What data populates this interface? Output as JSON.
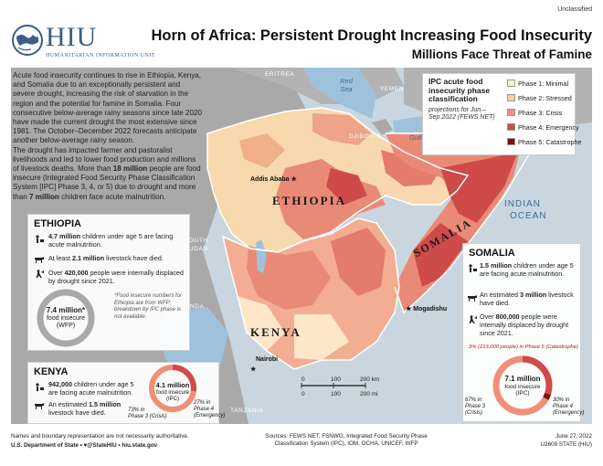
{
  "header": {
    "org": "HIU",
    "org_full": "Humanitarian Information Unit",
    "classification": "Unclassified",
    "title": "Horn of Africa: Persistent Drought Increasing Food Insecurity",
    "subtitle": "Millions Face Threat of Famine"
  },
  "intro": {
    "p1": "Acute food insecurity continues to rise in Ethiopia, Kenya, and Somalia due to an exceptionally persistent and severe drought, increasing the risk of starvation in the region and the potential for famine in Somalia. Four consecutive below-average rainy seasons since late 2020 have made the current drought the most extensive since 1981. The October–December 2022 forecasts anticipate another below-average rainy season.",
    "p2_a": "The drought has impacted farmer and pastoralist livelihoods and led to lower food production and millions of livestock deaths. More than ",
    "p2_b": "18 million",
    "p2_c": " people are food insecure (Integrated Food Security Phase Classification System [IPC] Phase 3, 4, or 5) due to drought and more than ",
    "p2_d": "7 million",
    "p2_e": " children face acute malnutrition."
  },
  "legend": {
    "title": "IPC acute food insecurity phase classification",
    "sub": "projections for Jun.–Sep.2022 (FEWS NET)",
    "phases": [
      {
        "label": "Phase 1: Minimal",
        "color": "#fdf1d3"
      },
      {
        "label": "Phase 2: Stressed",
        "color": "#f8cfa0"
      },
      {
        "label": "Phase 3: Crisis",
        "color": "#ef8f78"
      },
      {
        "label": "Phase 4: Emergency",
        "color": "#cf4a4a"
      },
      {
        "label": "Phase 5: Catastrophe",
        "color": "#7a1212"
      }
    ]
  },
  "map_labels": {
    "eritrea": "ERITREA",
    "yemen": "YEMEN",
    "djibouti": "DJIBOUTI",
    "red_sea": "Red\nSea",
    "gulf": "Gulf of Aden",
    "indian_ocean_1": "INDIAN",
    "indian_ocean_2": "OCEAN",
    "south_sudan_1": "SOUTH",
    "south_sudan_2": "SUDAN",
    "uganda": "UGANDA",
    "tanzania": "TANZANIA",
    "ethiopia": "ETHIOPIA",
    "kenya": "KENYA",
    "somalia": "SOMALIA",
    "addis": "Addis Ababa",
    "nairobi": "Nairobi",
    "mogadishu": "Mogadishu"
  },
  "scale": {
    "km_0": "0",
    "km_100": "100",
    "km_200": "200 km",
    "mi_0": "0",
    "mi_100": "100",
    "mi_200": "200 mi"
  },
  "ethiopia": {
    "title": "ETHIOPIA",
    "s1_b": "4.7 million",
    "s1_t": " children under age 5 are facing acute malnutrition.",
    "s2_a": "At least ",
    "s2_b": "2.1 million",
    "s2_c": " livestock have died.",
    "s3_a": "Over ",
    "s3_b": "420,000",
    "s3_c": " people were internally displaced by drought since 2021.",
    "donut_val": "7.4 million*",
    "donut_l1": "food insecure",
    "donut_l2": "(WFP)",
    "note": "*Food insecure numbers for Ethiopia are from WFP; breakdown by IPC phase is not available."
  },
  "kenya": {
    "title": "KENYA",
    "s1_b": "942,000",
    "s1_t": " children under age 5 are facing acute malnutrition.",
    "s2_a": "An estimated ",
    "s2_b": "1.5 million",
    "s2_c": " livestock have died.",
    "donut_val": "4.1 million",
    "donut_l1": "food insecure",
    "donut_l2": "(IPC)",
    "p3_pct": "73% in",
    "p3_lbl": "Phase 3 (Crisis)",
    "p4_pct": "27% in",
    "p4_lbl1": "Phase 4",
    "p4_lbl2": "(Emergency)",
    "p3_frac": 0.73,
    "p4_frac": 0.27
  },
  "somalia": {
    "title": "SOMALIA",
    "s1_b": "1.5 million",
    "s1_t": " children under age 5 are facing acute malnutrition.",
    "s2_a": "An estimated ",
    "s2_b": "3 million",
    "s2_c": " livestock have died.",
    "s3_a": "Over ",
    "s3_b": "800,000",
    "s3_c": " people were internally displaced by drought since 2021.",
    "p5_note": "3% (213,000 people) in Phase 5 (Catastrophe)",
    "donut_val": "7.1 million",
    "donut_l1": "food insecure",
    "donut_l2": "(IPC)",
    "p3_pct": "67% in",
    "p3_lbl1": "Phase 3",
    "p3_lbl2": "(Crisis)",
    "p4_pct": "30% in",
    "p4_lbl1": "Phase 4",
    "p4_lbl2": "(Emergency)",
    "p3_frac": 0.67,
    "p4_frac": 0.3,
    "p5_frac": 0.03
  },
  "footer": {
    "disclaimer": "Names and boundary representation are not necessarily authoritative.",
    "dept": "U.S. Department of State • ♥@StateHIU • hiu.state.gov",
    "sources": "Sources: FEWS NET, FSNWG, Integrated Food Security Phase Classification System (IPC), IOM, OCHA, UNICEF, WFP",
    "date": "June 27, 2022",
    "code": "U2609 STATE (HIU)"
  }
}
